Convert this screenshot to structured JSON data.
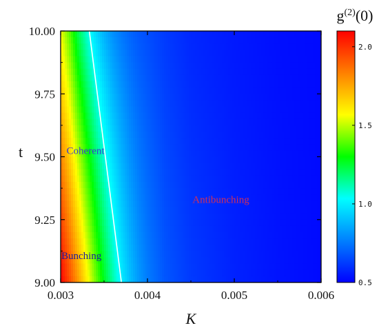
{
  "chart_data": {
    "type": "heatmap",
    "title": "",
    "xlabel": "K",
    "ylabel": "t",
    "xlim": [
      0.003,
      0.006
    ],
    "ylim": [
      9.0,
      10.0
    ],
    "x_ticks": [
      "0.003",
      "0.004",
      "0.005",
      "0.006"
    ],
    "x_tick_values": [
      0.003,
      0.004,
      0.005,
      0.006
    ],
    "y_ticks": [
      "9.00",
      "9.25",
      "9.50",
      "9.75",
      "10.00"
    ],
    "y_tick_values": [
      9.0,
      9.25,
      9.5,
      9.75,
      10.0
    ],
    "colorbar": {
      "title": "g(2)(0)",
      "title_base": "g",
      "title_sup": "(2)",
      "title_arg": "(0)",
      "range": [
        0.5,
        2.1
      ],
      "ticks": [
        "0.5",
        "1.0",
        "1.5",
        "2.0"
      ],
      "tick_values": [
        0.5,
        1.0,
        1.5,
        2.0
      ],
      "colors": [
        "#0000ff",
        "#0080ff",
        "#00ffff",
        "#00ff00",
        "#ffff00",
        "#ff8000",
        "#ff0000"
      ]
    },
    "contour_g2_equals_1": {
      "value": 1.0,
      "color": "#ffffff",
      "points": [
        [
          0.0037,
          9.0
        ],
        [
          0.00333,
          10.0
        ]
      ]
    },
    "field_model": {
      "description_of_values": "g2 along K at t=9.0 and t=10.0",
      "k": [
        0.003,
        0.0031,
        0.0032,
        0.0033,
        0.0034,
        0.0035,
        0.0036,
        0.0037,
        0.0038,
        0.0039,
        0.004,
        0.0042,
        0.0045,
        0.005,
        0.0055,
        0.006
      ],
      "g2_at_t9": [
        2.1,
        1.95,
        1.78,
        1.6,
        1.43,
        1.27,
        1.13,
        1.0,
        0.9,
        0.82,
        0.76,
        0.68,
        0.62,
        0.57,
        0.54,
        0.52
      ],
      "g2_at_t10": [
        1.55,
        1.4,
        1.22,
        1.08,
        0.96,
        0.87,
        0.8,
        0.75,
        0.71,
        0.68,
        0.66,
        0.62,
        0.58,
        0.55,
        0.53,
        0.52
      ]
    },
    "annotations": [
      {
        "text": "Coherent",
        "k": 0.00329,
        "t": 9.525,
        "color": "#3a3ad0"
      },
      {
        "text": "Antibunching",
        "k": 0.00474,
        "t": 9.33,
        "color": "#d0305a"
      },
      {
        "text": "Bunching",
        "k": 0.00323,
        "t": 9.107,
        "color": "#1a1aa0"
      }
    ]
  }
}
